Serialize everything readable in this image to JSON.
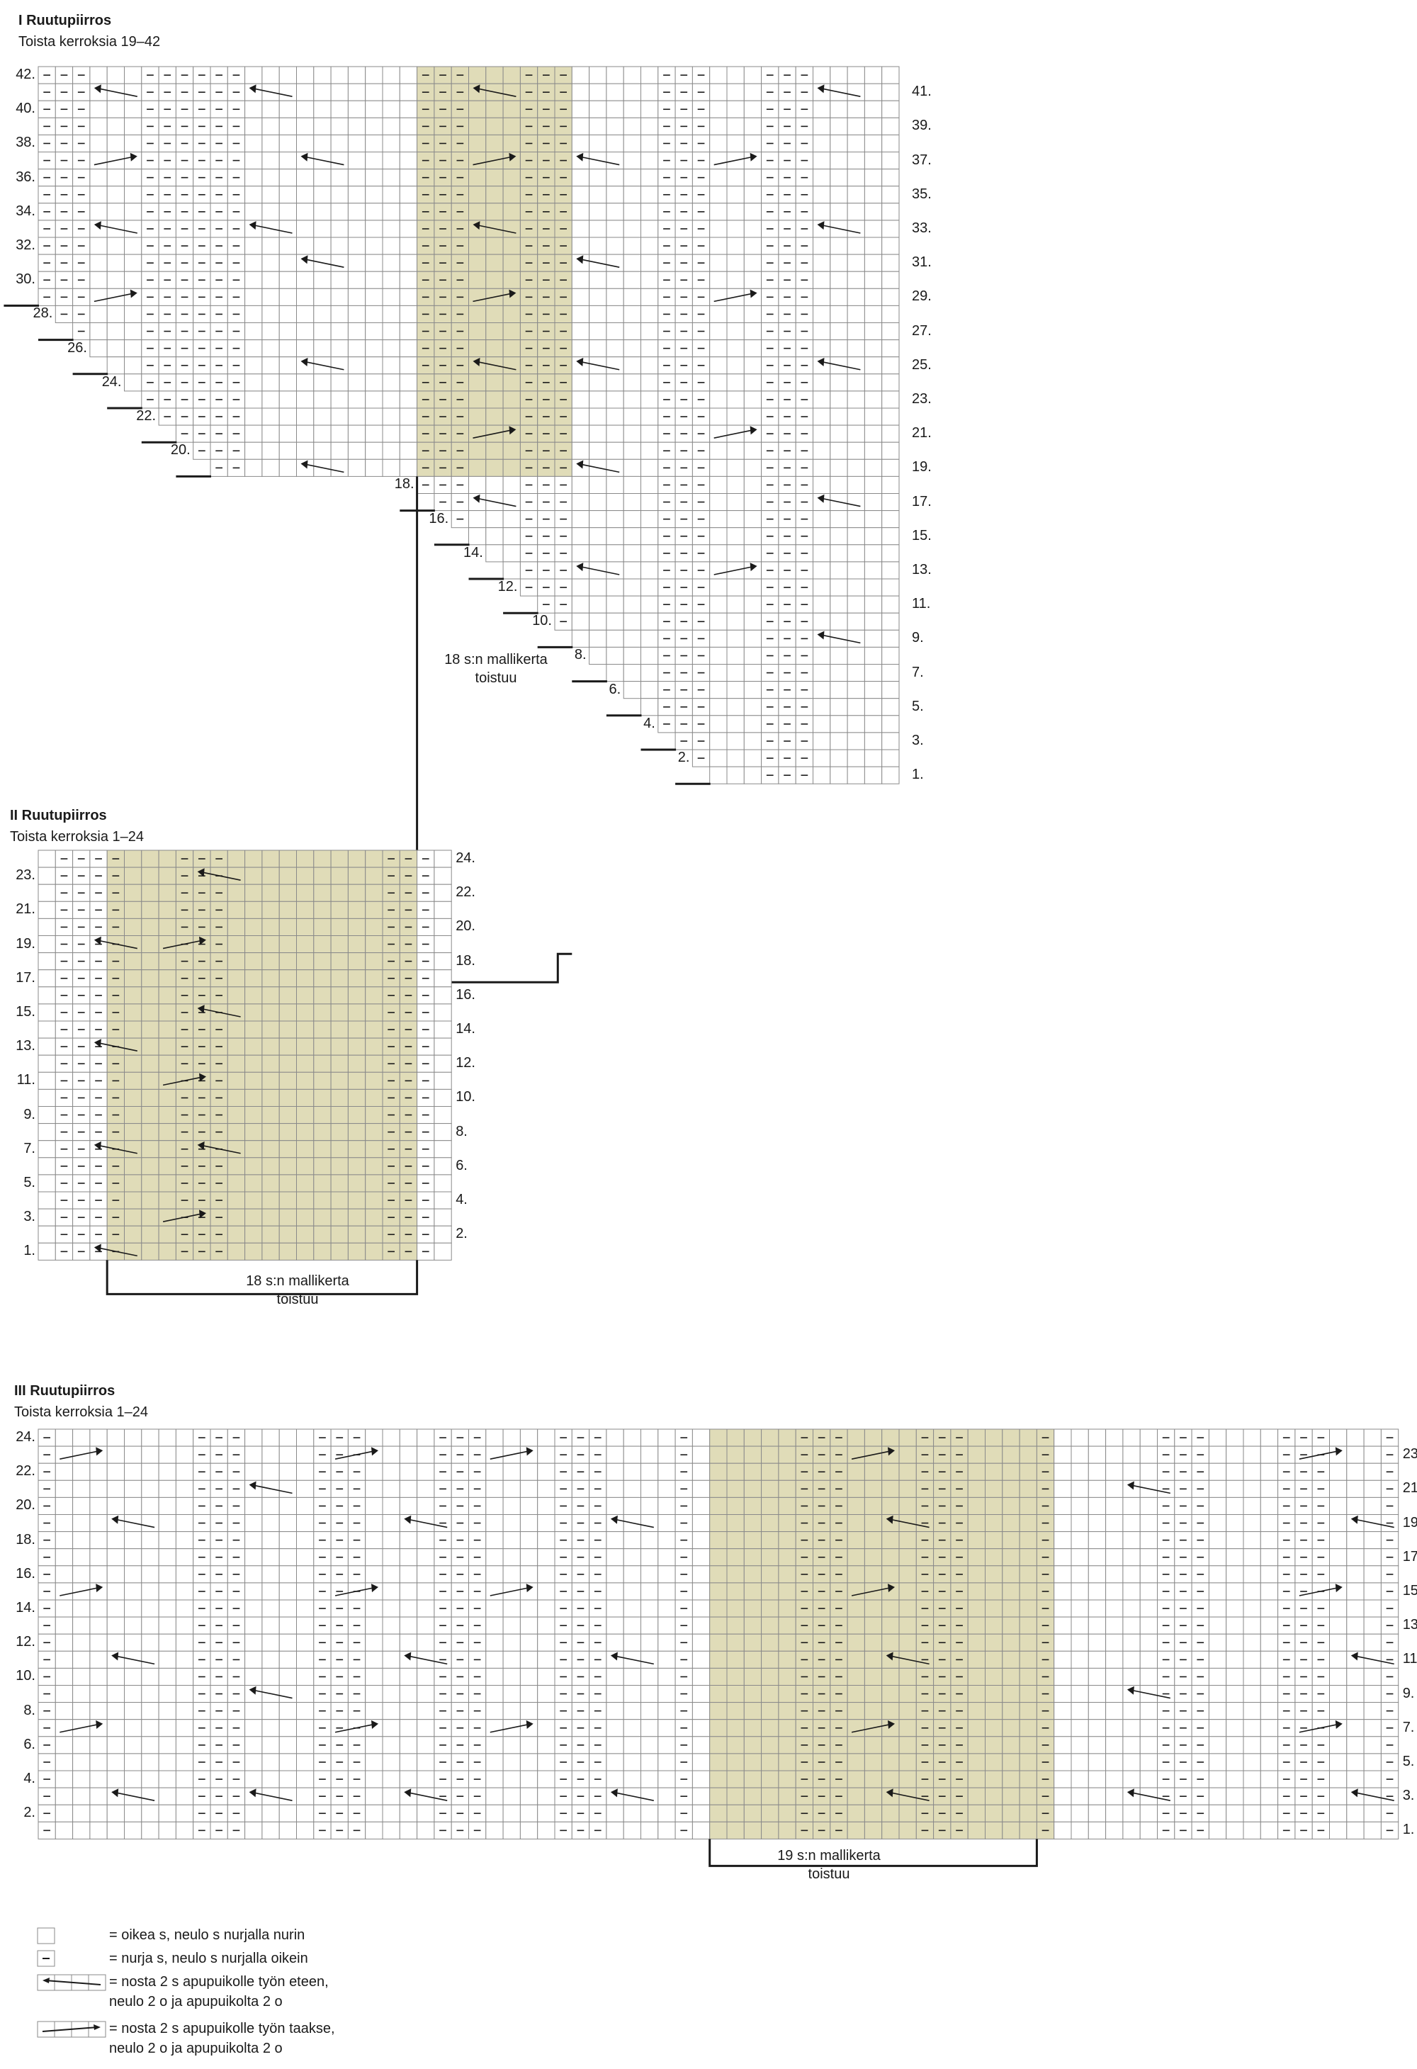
{
  "charts": [
    {
      "title": "I Ruutupiirros",
      "subtitle": "Toista kerroksia 19–42",
      "rows": 42,
      "cols": 50,
      "bracket_label": [
        "18 s:n mallikerta",
        "toistuu"
      ],
      "left_labels": [
        "42.",
        "40.",
        "38.",
        "36.",
        "34.",
        "32.",
        "30."
      ],
      "stair_labels": [
        "28.",
        "26.",
        "24.",
        "22.",
        "20.",
        "18.",
        "16.",
        "14.",
        "12.",
        "10.",
        "8.",
        "6.",
        "4.",
        "2."
      ],
      "right_labels": [
        "41.",
        "39.",
        "37.",
        "35.",
        "33.",
        "31.",
        "29.",
        "27.",
        "25.",
        "23.",
        "21.",
        "19.",
        "17.",
        "15.",
        "13.",
        "11.",
        "9.",
        "7.",
        "5.",
        "3.",
        "1."
      ]
    },
    {
      "title": "II Ruutupiirros",
      "subtitle": "Toista kerroksia 1–24",
      "rows": 24,
      "cols": 24,
      "bracket_label": [
        "18 s:n mallikerta",
        "toistuu"
      ],
      "left_labels": [
        "23.",
        "21.",
        "19.",
        "17.",
        "15.",
        "13.",
        "11.",
        "9.",
        "7.",
        "5.",
        "3.",
        "1."
      ],
      "right_labels": [
        "24.",
        "22.",
        "20.",
        "18.",
        "16.",
        "14.",
        "12.",
        "10.",
        "8.",
        "6.",
        "4.",
        "2."
      ]
    },
    {
      "title": "III Ruutupiirros",
      "subtitle": "Toista kerroksia 1–24",
      "rows": 24,
      "cols": 79,
      "bracket_label": [
        "19 s:n mallikerta",
        "toistuu"
      ],
      "left_labels": [
        "24.",
        "22.",
        "20.",
        "18.",
        "16.",
        "14.",
        "12.",
        "10.",
        "8.",
        "6.",
        "4.",
        "2."
      ],
      "right_labels": [
        "23.",
        "21.",
        "19.",
        "17.",
        "15.",
        "13.",
        "11.",
        "9.",
        "7.",
        "5.",
        "3.",
        "1."
      ]
    }
  ],
  "legend": [
    {
      "symbol": "knit",
      "lines": [
        "= oikea s, neulo s nurjalla nurin"
      ]
    },
    {
      "symbol": "purl",
      "lines": [
        "= nurja s, neulo s nurjalla oikein"
      ]
    },
    {
      "symbol": "cable-front",
      "lines": [
        "= nosta 2 s apupuikolle työn eteen,",
        "neulo 2 o ja apupuikolta 2 o"
      ]
    },
    {
      "symbol": "cable-back",
      "lines": [
        "= nosta 2 s apupuikolle työn taakse,",
        "neulo 2 o ja apupuikolta 2 o"
      ]
    }
  ],
  "colors": {
    "repeat_fill": "#e0dcb8",
    "grid": "#8a8a8a",
    "ink": "#1a1a1a"
  }
}
